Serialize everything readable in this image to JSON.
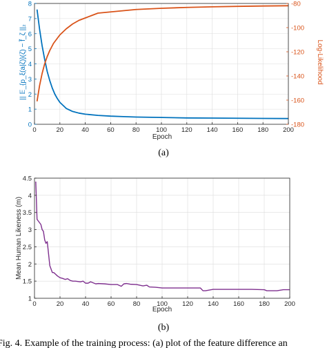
{
  "chart_data": [
    {
      "type": "line",
      "title": "",
      "xlabel": "Epoch",
      "ylabel": "|| 𝔼_{p_ξ(a|ζ)}(ζ) − f̃_ζ ||₂",
      "y2label": "Log-Likelihood",
      "xlim": [
        0,
        200
      ],
      "ylim": [
        0,
        8
      ],
      "y2lim": [
        -180,
        -80
      ],
      "xticks": [
        "0",
        "20",
        "40",
        "60",
        "80",
        "100",
        "120",
        "140",
        "160",
        "180",
        "200"
      ],
      "yticks": [
        "0",
        "1",
        "2",
        "3",
        "4",
        "5",
        "6",
        "7",
        "8"
      ],
      "y2ticks": [
        "-180",
        "-160",
        "-140",
        "-120",
        "-100",
        "-80"
      ],
      "grid": true,
      "colors": {
        "left_axis": "#0072bd",
        "right_axis": "#d95319"
      },
      "series": [
        {
          "axis": "left",
          "x": [
            2,
            4,
            6,
            8,
            10,
            12,
            14,
            16,
            18,
            20,
            25,
            30,
            35,
            40,
            50,
            60,
            70,
            80,
            100,
            120,
            140,
            160,
            180,
            200
          ],
          "values": [
            7.6,
            6.3,
            5.2,
            4.3,
            3.5,
            2.9,
            2.4,
            2.0,
            1.7,
            1.45,
            1.05,
            0.85,
            0.74,
            0.67,
            0.59,
            0.54,
            0.51,
            0.48,
            0.45,
            0.42,
            0.41,
            0.4,
            0.39,
            0.38
          ]
        },
        {
          "axis": "right",
          "x": [
            2,
            4,
            6,
            8,
            10,
            12,
            15,
            20,
            25,
            30,
            35,
            40,
            45,
            50,
            60,
            70,
            80,
            90,
            100,
            120,
            140,
            160,
            180,
            200
          ],
          "values": [
            -161,
            -148,
            -138,
            -130,
            -124,
            -119,
            -113,
            -106,
            -101,
            -97,
            -94,
            -92,
            -90,
            -88,
            -87,
            -86,
            -85,
            -84.5,
            -84,
            -83.3,
            -82.8,
            -82.4,
            -82.1,
            -81.9
          ]
        }
      ]
    },
    {
      "type": "line",
      "title": "",
      "xlabel": "Epoch",
      "ylabel": "Mean Human Likeness (m)",
      "xlim": [
        0,
        200
      ],
      "ylim": [
        1,
        4.5
      ],
      "xticks": [
        "0",
        "20",
        "40",
        "60",
        "80",
        "100",
        "120",
        "140",
        "160",
        "180",
        "200"
      ],
      "yticks": [
        "1",
        "1.5",
        "2",
        "2.5",
        "3",
        "3.5",
        "4",
        "4.5"
      ],
      "grid": true,
      "colors": {
        "line": "#7e2f8e"
      },
      "series": [
        {
          "x": [
            1,
            2,
            3,
            4,
            5,
            6,
            7,
            8,
            9,
            10,
            11,
            12,
            13,
            14,
            15,
            16,
            18,
            20,
            22,
            24,
            26,
            28,
            30,
            32,
            34,
            36,
            38,
            40,
            42,
            44,
            46,
            48,
            50,
            55,
            60,
            65,
            68,
            70,
            72,
            75,
            80,
            85,
            88,
            90,
            95,
            100,
            110,
            120,
            130,
            132,
            134,
            140,
            150,
            160,
            170,
            180,
            182,
            185,
            190,
            195,
            200
          ],
          "values": [
            4.4,
            3.3,
            3.25,
            3.2,
            3.15,
            3.0,
            2.95,
            2.7,
            2.6,
            2.65,
            2.3,
            1.95,
            1.85,
            1.75,
            1.75,
            1.72,
            1.65,
            1.6,
            1.58,
            1.55,
            1.57,
            1.52,
            1.5,
            1.5,
            1.49,
            1.48,
            1.5,
            1.44,
            1.44,
            1.48,
            1.45,
            1.42,
            1.43,
            1.42,
            1.4,
            1.4,
            1.35,
            1.42,
            1.43,
            1.41,
            1.4,
            1.36,
            1.38,
            1.33,
            1.32,
            1.3,
            1.3,
            1.3,
            1.3,
            1.22,
            1.22,
            1.26,
            1.26,
            1.26,
            1.26,
            1.25,
            1.22,
            1.22,
            1.22,
            1.25,
            1.25
          ]
        }
      ]
    }
  ],
  "captions": {
    "a": "(a)",
    "b": "(b)"
  },
  "figure_text": "Fig. 4.  Example of the training process: (a) plot of the feature difference an"
}
